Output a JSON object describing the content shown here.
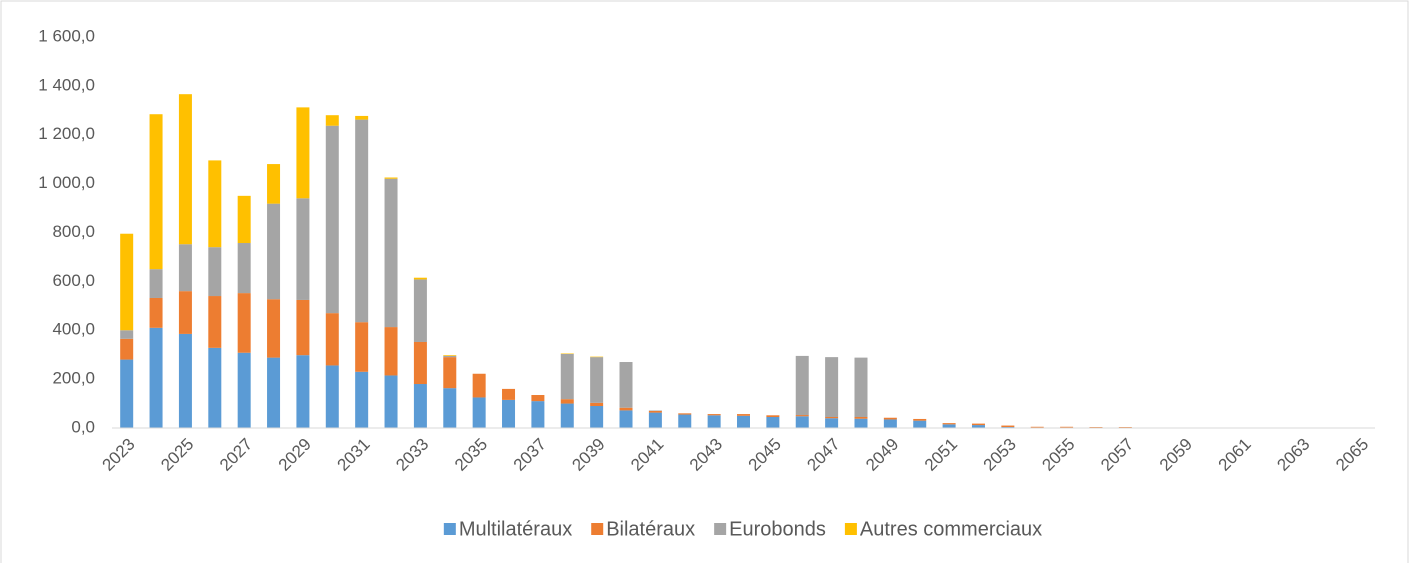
{
  "chart_data": {
    "type": "stacked_bar",
    "categories": [
      "2023",
      null,
      "2025",
      null,
      "2027",
      null,
      "2029",
      null,
      "2031",
      null,
      "2033",
      null,
      "2035",
      null,
      "2037",
      null,
      "2039",
      null,
      "2041",
      null,
      "2043",
      null,
      "2045",
      null,
      "2047",
      null,
      "2049",
      null,
      "2051",
      null,
      "2053",
      null,
      "2055",
      null,
      "2057",
      null,
      "2059",
      null,
      "2061",
      null,
      "2063",
      null,
      "2065"
    ],
    "series": [
      {
        "name": "Multilatéraux",
        "color": "#5b9bd5",
        "values": [
          280,
          410,
          385,
          328,
          308,
          288,
          298,
          256,
          230,
          215,
          180,
          163,
          125,
          115,
          110,
          100,
          90,
          72,
          63,
          55,
          52,
          50,
          45,
          48,
          40,
          38,
          35,
          30,
          15,
          12,
          4,
          2,
          2,
          1,
          1,
          0,
          0,
          0,
          0,
          0,
          0,
          0,
          0
        ]
      },
      {
        "name": "Bilatéraux",
        "color": "#ed7d31",
        "values": [
          85,
          122,
          175,
          212,
          244,
          239,
          226,
          214,
          203,
          198,
          172,
          127,
          97,
          45,
          25,
          18,
          13,
          11,
          7,
          5,
          5,
          7,
          7,
          5,
          5,
          7,
          7,
          7,
          5,
          6,
          6,
          3,
          3,
          3,
          3,
          0,
          0,
          0,
          0,
          0,
          0,
          0,
          0
        ]
      },
      {
        "name": "Eurobonds",
        "color": "#a5a5a5",
        "values": [
          35,
          118,
          192,
          200,
          205,
          391,
          416,
          767,
          829,
          607,
          256,
          5,
          0,
          0,
          0,
          185,
          187,
          187,
          2,
          0,
          0,
          0,
          0,
          242,
          245,
          243,
          0,
          0,
          0,
          0,
          0,
          0,
          0,
          0,
          0,
          0,
          0,
          0,
          0,
          0,
          0,
          0,
          0
        ]
      },
      {
        "name": "Autres commerciaux",
        "color": "#ffc000",
        "values": [
          395,
          634,
          614,
          355,
          193,
          162,
          372,
          43,
          15,
          5,
          7,
          3,
          0,
          0,
          0,
          2,
          2,
          0,
          0,
          0,
          0,
          0,
          0,
          0,
          0,
          0,
          0,
          0,
          0,
          0,
          0,
          0,
          0,
          0,
          0,
          0,
          0,
          0,
          0,
          0,
          0,
          0,
          0
        ]
      }
    ],
    "ylim": [
      0,
      1600
    ],
    "yticks": [
      {
        "value": 0,
        "label": "0,0"
      },
      {
        "value": 200,
        "label": "200,0"
      },
      {
        "value": 400,
        "label": "400,0"
      },
      {
        "value": 600,
        "label": "600,0"
      },
      {
        "value": 800,
        "label": "800,0"
      },
      {
        "value": 1000,
        "label": "1 000,0"
      },
      {
        "value": 1200,
        "label": "1 200,0"
      },
      {
        "value": 1400,
        "label": "1 400,0"
      },
      {
        "value": 1600,
        "label": "1 600,0"
      }
    ],
    "grid": false,
    "legend": "bottom"
  }
}
